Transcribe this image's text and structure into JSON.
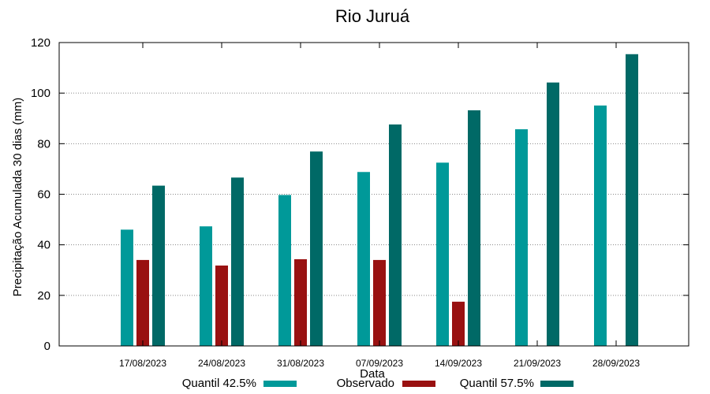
{
  "chart_data": {
    "type": "bar",
    "title": "Rio Juruá",
    "xlabel": "Data",
    "ylabel": "Precipitação Acumulada 30 dias (mm)",
    "ylim": [
      0,
      120
    ],
    "yticks": [
      0,
      20,
      40,
      60,
      80,
      100,
      120
    ],
    "grid": true,
    "categories": [
      "17/08/2023",
      "24/08/2023",
      "31/08/2023",
      "07/09/2023",
      "14/09/2023",
      "21/09/2023",
      "28/09/2023"
    ],
    "series": [
      {
        "name": "Quantil 42.5%",
        "color": "#009999",
        "values": [
          46,
          47.3,
          59.7,
          68.8,
          72.5,
          85.7,
          95.1
        ]
      },
      {
        "name": "Observado",
        "color": "#991111",
        "values": [
          34,
          31.8,
          34.3,
          34,
          17.5,
          null,
          null
        ]
      },
      {
        "name": "Quantil 57.5%",
        "color": "#006966",
        "values": [
          63.4,
          66.6,
          76.9,
          87.6,
          93.2,
          104.2,
          115.4
        ]
      }
    ],
    "legend_position": "bottom"
  }
}
